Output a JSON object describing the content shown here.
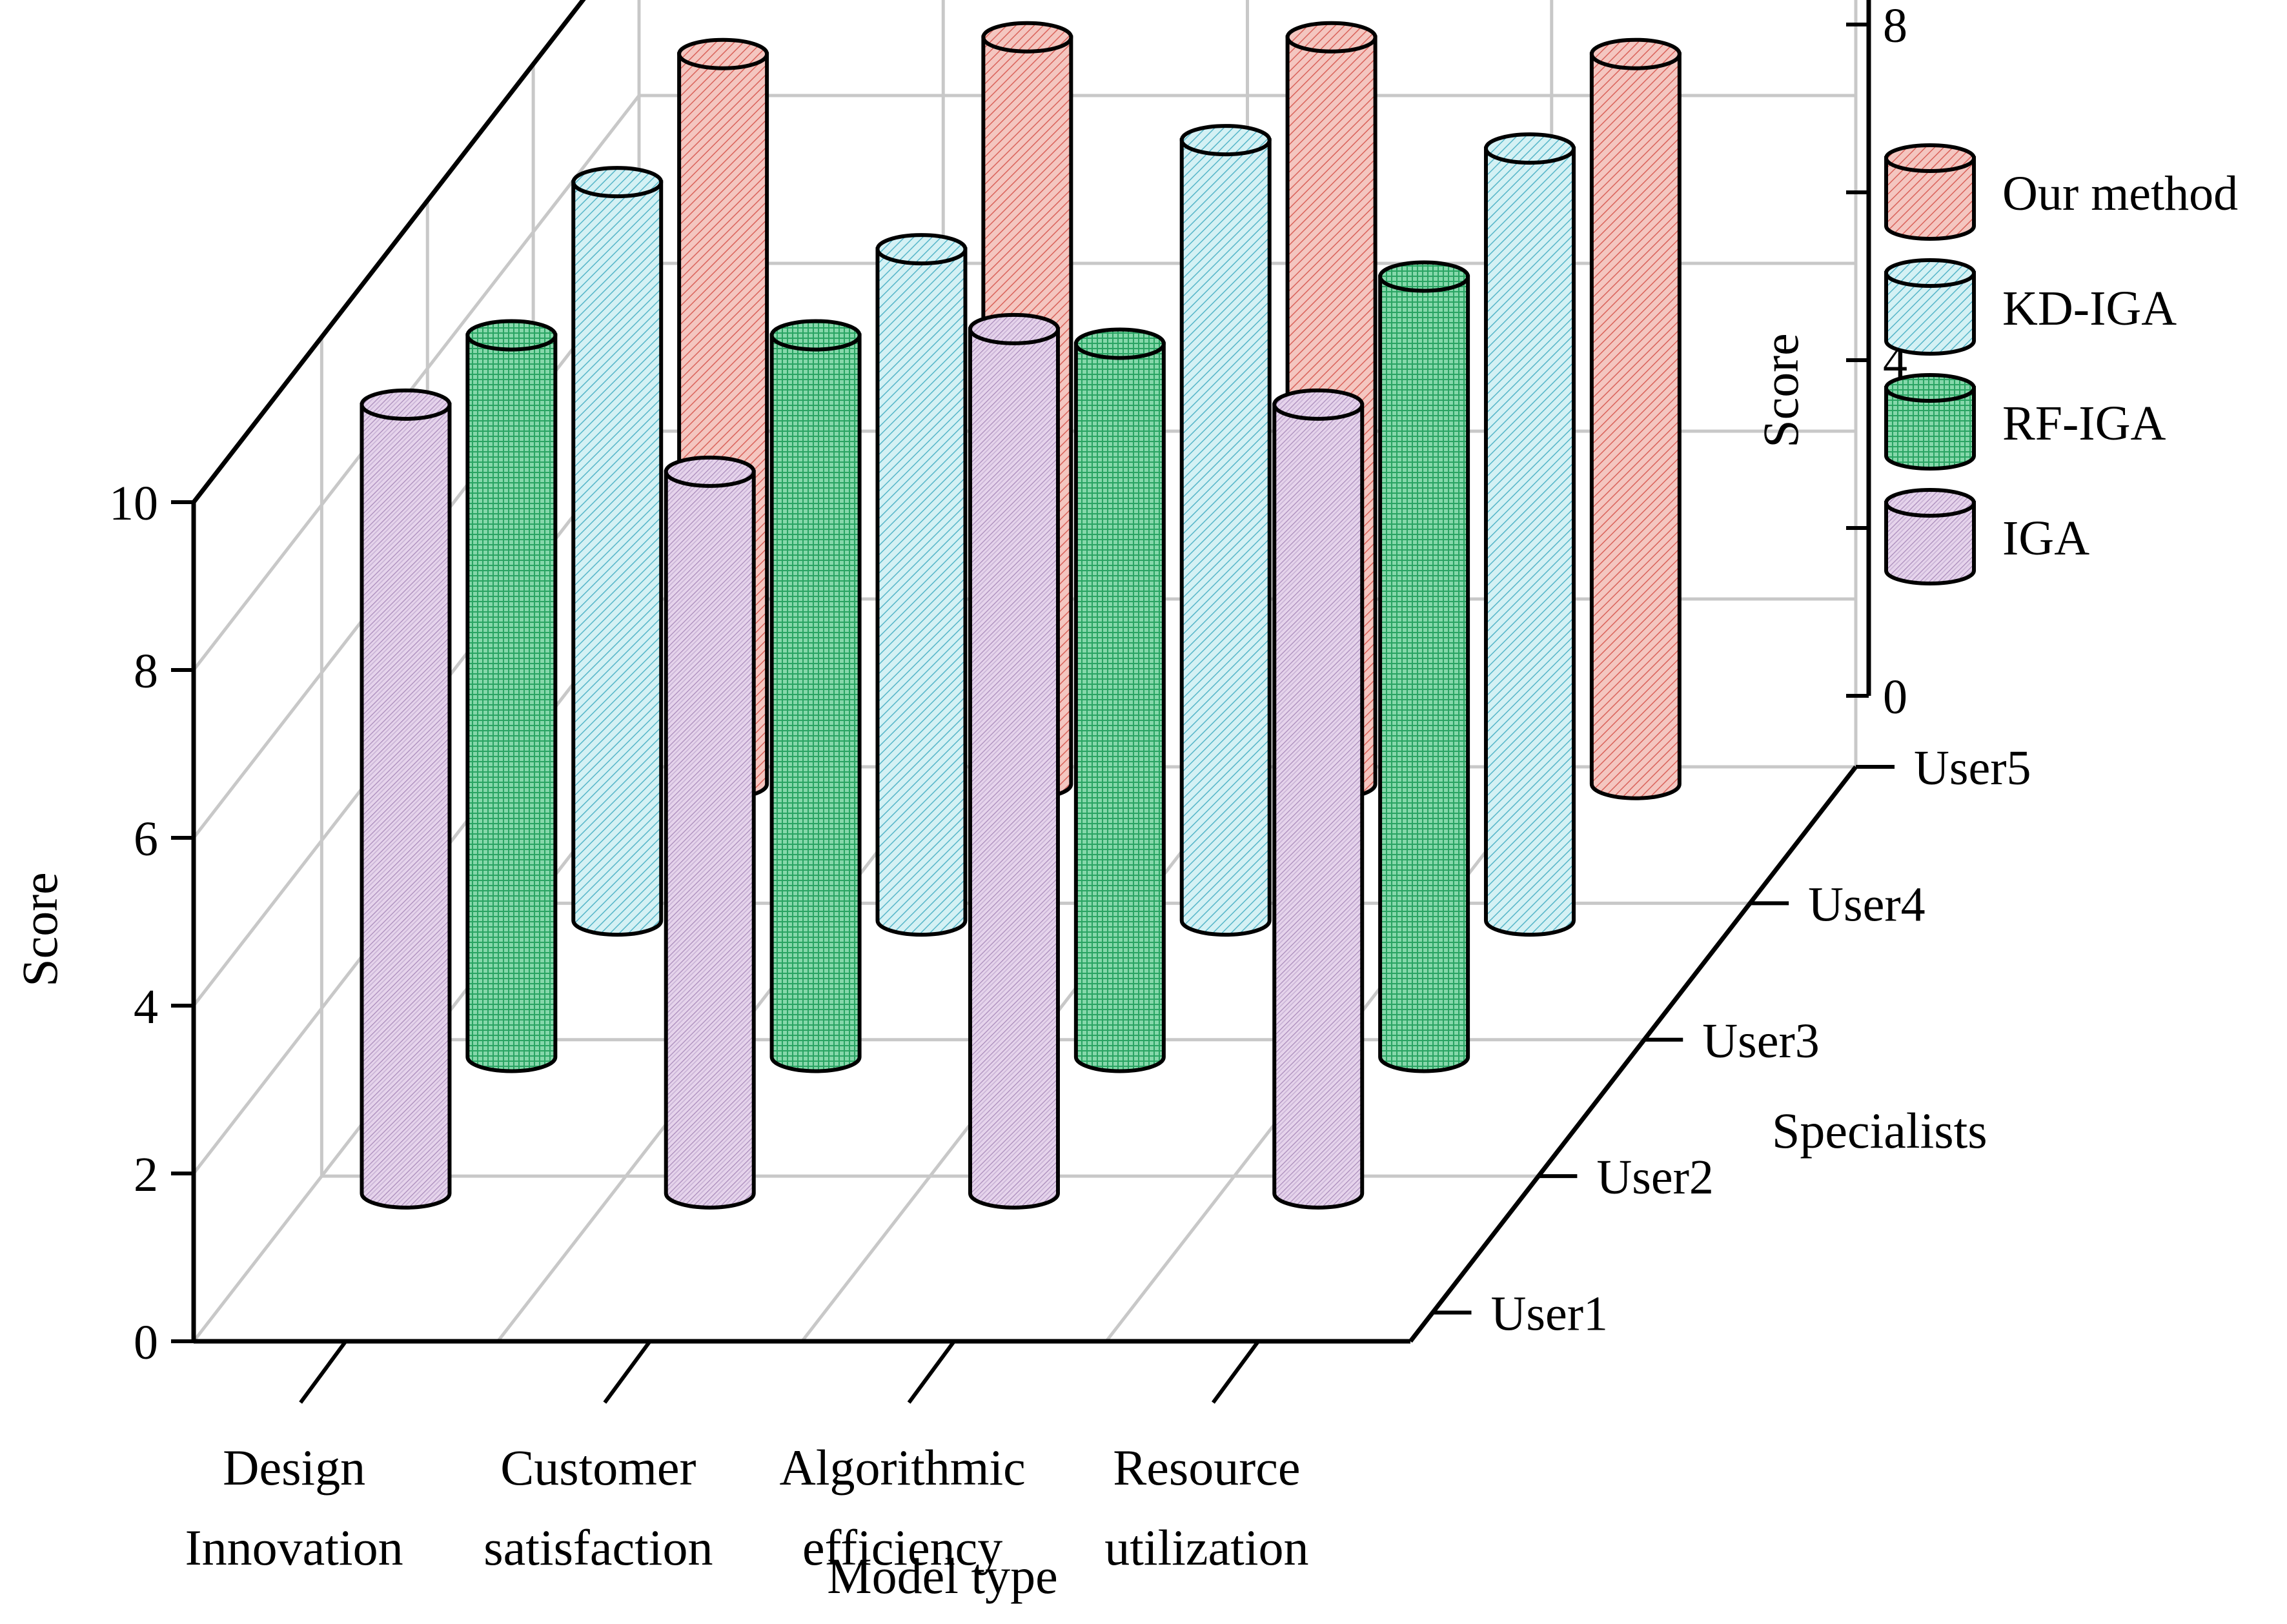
{
  "chart_data": {
    "type": "bar3d",
    "categories": [
      "Design Innovation",
      "Customer satisfaction",
      "Algorithmic efficiency",
      "Resource utilization"
    ],
    "category_lines": [
      [
        "Design",
        "Innovation"
      ],
      [
        "Customer",
        "satisfaction"
      ],
      [
        "Algorithmic",
        "efficiency"
      ],
      [
        "Resource",
        "utilization"
      ]
    ],
    "depth_labels": [
      "User1",
      "User2",
      "User3",
      "User4",
      "User5"
    ],
    "xlabel": "Model type",
    "ylabel": "Specialists",
    "zlabel": "Score",
    "zlim": [
      0,
      10
    ],
    "zticks": [
      0,
      2,
      4,
      6,
      8,
      10
    ],
    "legend_position": "top-right",
    "grid": true,
    "series": [
      {
        "name": "Our method",
        "color": "#f2b8b1",
        "line_color": "#d9625a",
        "depth": 4,
        "values": [
          8.7,
          8.9,
          8.9,
          8.7
        ]
      },
      {
        "name": "KD-IGA",
        "color": "#c9edf1",
        "line_color": "#55b5c8",
        "depth": 3,
        "values": [
          8.8,
          8.0,
          9.3,
          9.2
        ]
      },
      {
        "name": "RF-IGA",
        "color": "#7fd3a6",
        "line_color": "#239a5b",
        "depth": 2,
        "values": [
          8.6,
          8.6,
          8.5,
          9.3
        ]
      },
      {
        "name": "IGA",
        "color": "#ddc7e6",
        "line_color": "#9f7fb3",
        "depth": 1,
        "values": [
          9.4,
          8.6,
          10.3,
          9.4
        ]
      }
    ]
  }
}
